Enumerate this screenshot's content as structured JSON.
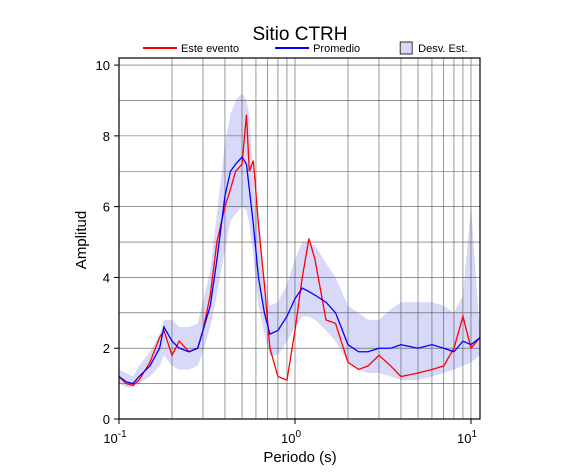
{
  "chart_data": {
    "type": "line",
    "title": "Sitio CTRH",
    "x_label": "Periodo (s)",
    "y_label": "Amplitud",
    "xscale": "log",
    "xlim": [
      0.1,
      11.25
    ],
    "ylim": [
      0,
      10.2
    ],
    "xticks": [
      {
        "value": 0.1,
        "label": "10",
        "exponent": "-1"
      },
      {
        "value": 1,
        "label": "10",
        "exponent": "0"
      },
      {
        "value": 10,
        "label": "10",
        "exponent": "1"
      }
    ],
    "xminorticks": [
      0.2,
      0.3,
      0.4,
      0.5,
      0.6,
      0.7,
      0.8,
      0.9,
      2,
      3,
      4,
      5,
      6,
      7,
      8,
      9
    ],
    "yticks": [
      0,
      2,
      4,
      6,
      8,
      10
    ],
    "yminorticks": [
      1,
      3,
      5,
      7,
      9
    ],
    "grid": true,
    "legend": "top",
    "x": [
      0.1,
      0.11,
      0.12,
      0.13,
      0.15,
      0.17,
      0.18,
      0.2,
      0.22,
      0.25,
      0.28,
      0.3,
      0.33,
      0.36,
      0.4,
      0.43,
      0.46,
      0.5,
      0.53,
      0.55,
      0.58,
      0.62,
      0.67,
      0.72,
      0.8,
      0.9,
      1.0,
      1.1,
      1.2,
      1.3,
      1.5,
      1.7,
      2.0,
      2.3,
      2.6,
      3.0,
      3.5,
      4.0,
      5.0,
      6.0,
      7.0,
      8.0,
      9.0,
      10.0,
      11.25
    ],
    "band": {
      "name": "Desv. Est.",
      "color": "#d8d8f8",
      "low": [
        1.0,
        0.9,
        0.9,
        1.0,
        1.2,
        1.5,
        1.8,
        1.5,
        1.4,
        1.4,
        1.5,
        1.9,
        2.6,
        3.5,
        4.8,
        5.6,
        5.8,
        6.0,
        5.9,
        5.5,
        4.6,
        3.2,
        2.4,
        1.8,
        1.8,
        2.2,
        2.6,
        2.9,
        2.9,
        2.8,
        2.5,
        2.2,
        1.6,
        1.4,
        1.3,
        1.3,
        1.2,
        1.1,
        1.1,
        1.2,
        1.3,
        1.4,
        1.5,
        1.6,
        1.8
      ],
      "high": [
        1.4,
        1.3,
        1.2,
        1.5,
        1.9,
        2.4,
        2.8,
        2.8,
        2.6,
        2.6,
        2.7,
        3.3,
        4.2,
        5.8,
        7.8,
        8.6,
        9.0,
        9.2,
        9.0,
        8.6,
        6.8,
        5.3,
        4.0,
        3.2,
        3.3,
        3.8,
        4.5,
        5.0,
        5.0,
        4.9,
        4.4,
        4.0,
        3.2,
        3.0,
        2.8,
        2.8,
        3.1,
        3.3,
        3.3,
        3.3,
        3.2,
        3.0,
        3.5,
        6.0,
        2.4
      ]
    },
    "series": [
      {
        "name": "Este evento",
        "color": "#ff0000",
        "values": [
          1.2,
          1.0,
          0.95,
          1.1,
          1.6,
          2.3,
          2.5,
          1.8,
          2.2,
          1.9,
          2.0,
          2.5,
          3.5,
          5.0,
          6.0,
          6.5,
          7.0,
          7.2,
          8.6,
          7.0,
          7.3,
          5.5,
          3.8,
          2.0,
          1.2,
          1.1,
          2.5,
          4.0,
          5.1,
          4.5,
          2.8,
          2.7,
          1.6,
          1.4,
          1.5,
          1.8,
          1.5,
          1.2,
          1.3,
          1.4,
          1.5,
          2.0,
          2.9,
          2.0,
          2.3
        ]
      },
      {
        "name": "Promedio",
        "color": "#0000ff",
        "values": [
          1.2,
          1.05,
          1.0,
          1.2,
          1.5,
          2.0,
          2.6,
          2.2,
          2.0,
          1.9,
          2.0,
          2.5,
          3.2,
          4.5,
          6.3,
          7.0,
          7.2,
          7.4,
          7.2,
          6.5,
          5.5,
          4.0,
          3.0,
          2.4,
          2.5,
          2.9,
          3.4,
          3.7,
          3.6,
          3.5,
          3.3,
          3.0,
          2.1,
          1.9,
          1.9,
          2.0,
          2.0,
          2.1,
          2.0,
          2.1,
          2.0,
          1.9,
          2.2,
          2.1,
          2.3
        ]
      }
    ]
  }
}
